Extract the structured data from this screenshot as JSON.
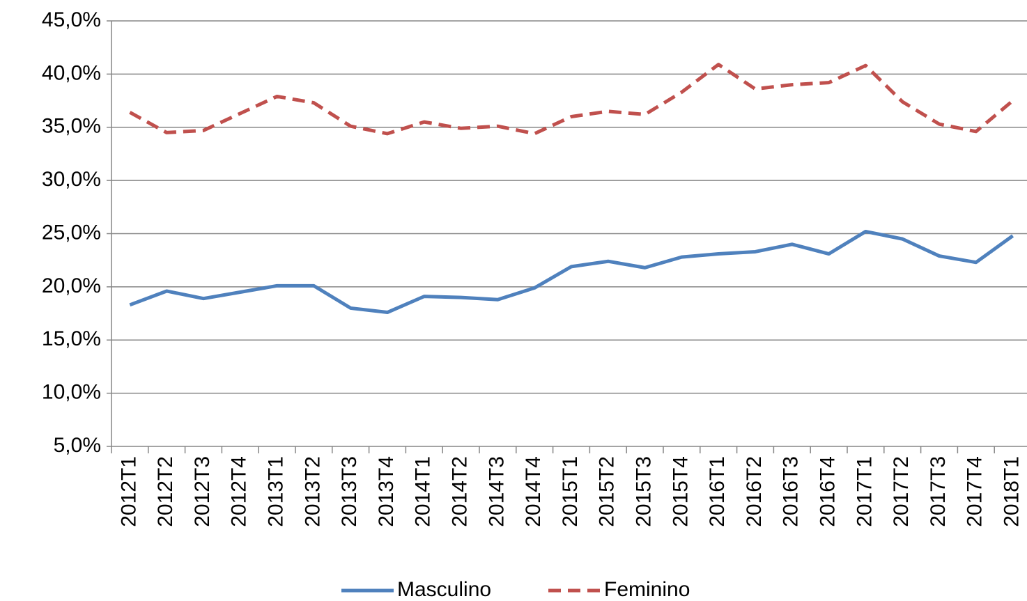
{
  "chart_data": {
    "type": "line",
    "categories": [
      "2012T1",
      "2012T2",
      "2012T3",
      "2012T4",
      "2013T1",
      "2013T2",
      "2013T3",
      "2013T4",
      "2014T1",
      "2014T2",
      "2014T3",
      "2014T4",
      "2015T1",
      "2015T2",
      "2015T3",
      "2015T4",
      "2016T1",
      "2016T2",
      "2016T3",
      "2016T4",
      "2017T1",
      "2017T2",
      "2017T3",
      "2017T4",
      "2018T1"
    ],
    "series": [
      {
        "name": "Masculino",
        "color": "#4f81bd",
        "dash": false,
        "values": [
          18.3,
          19.6,
          18.9,
          19.5,
          20.1,
          20.1,
          18.0,
          17.6,
          19.1,
          19.0,
          18.8,
          19.9,
          21.9,
          22.4,
          21.8,
          22.8,
          23.1,
          23.3,
          24.0,
          23.1,
          25.2,
          24.5,
          22.9,
          22.3,
          24.8
        ]
      },
      {
        "name": "Feminino",
        "color": "#c0504d",
        "dash": true,
        "values": [
          36.4,
          34.5,
          34.7,
          36.3,
          37.9,
          37.3,
          35.1,
          34.4,
          35.5,
          34.9,
          35.1,
          34.4,
          36.0,
          36.5,
          36.2,
          38.3,
          40.9,
          38.6,
          39.0,
          39.2,
          40.8,
          37.4,
          35.3,
          34.6,
          37.5
        ]
      }
    ],
    "ylim": [
      5,
      45
    ],
    "yticks": [
      {
        "value": 5,
        "label": "5,0%"
      },
      {
        "value": 10,
        "label": "10,0%"
      },
      {
        "value": 15,
        "label": "15,0%"
      },
      {
        "value": 20,
        "label": "20,0%"
      },
      {
        "value": 25,
        "label": "25,0%"
      },
      {
        "value": 30,
        "label": "30,0%"
      },
      {
        "value": 35,
        "label": "35,0%"
      },
      {
        "value": 40,
        "label": "40,0%"
      },
      {
        "value": 45,
        "label": "45,0%"
      }
    ],
    "grid": true,
    "legend": "bottom"
  }
}
